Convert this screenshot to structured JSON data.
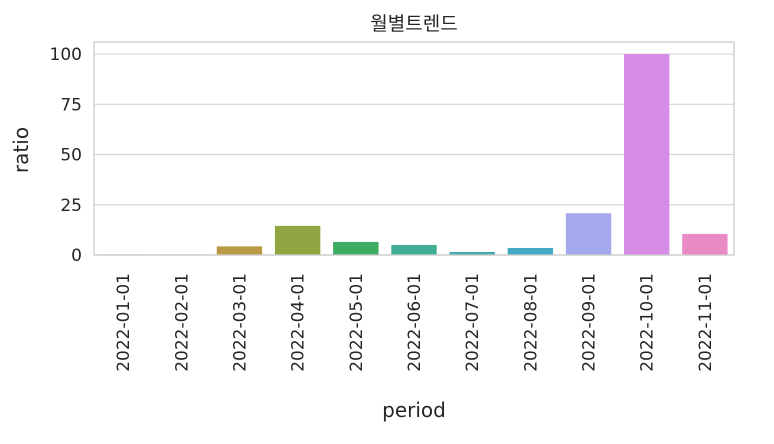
{
  "chart_data": {
    "type": "bar",
    "title": "월별트렌드",
    "xlabel": "period",
    "ylabel": "ratio",
    "ylim": [
      0,
      106
    ],
    "yticks": [
      0,
      25,
      50,
      75,
      100
    ],
    "grid": true,
    "legend": "none",
    "categories": [
      "2022-01-01",
      "2022-02-01",
      "2022-03-01",
      "2022-04-01",
      "2022-05-01",
      "2022-06-01",
      "2022-07-01",
      "2022-08-01",
      "2022-09-01",
      "2022-10-01",
      "2022-11-01"
    ],
    "values": [
      0.3,
      0.3,
      4.3,
      14.5,
      6.5,
      5.0,
      1.5,
      3.5,
      20.8,
      100,
      10.5
    ],
    "colors": [
      "#e98a93",
      "#d4925a",
      "#bb9a45",
      "#8fa642",
      "#3dab62",
      "#3fae93",
      "#41abad",
      "#45a7c6",
      "#a4a9ee",
      "#d78ce6",
      "#e98ac5"
    ]
  }
}
